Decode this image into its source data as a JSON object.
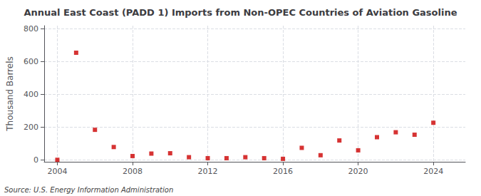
{
  "chart_data": {
    "type": "scatter",
    "title": "Annual East Coast (PADD 1) Imports from Non-OPEC Countries of Aviation Gasoline",
    "ylabel": "Thousand Barrels",
    "annotation": "Source: U.S. Energy Information Administration",
    "x": [
      2004,
      2005,
      2006,
      2007,
      2008,
      2009,
      2010,
      2011,
      2012,
      2013,
      2014,
      2015,
      2016,
      2017,
      2018,
      2019,
      2020,
      2021,
      2022,
      2023,
      2024
    ],
    "values": [
      2,
      655,
      185,
      80,
      25,
      40,
      42,
      18,
      12,
      12,
      18,
      12,
      8,
      75,
      30,
      120,
      60,
      140,
      170,
      155,
      228
    ],
    "color": "#cc0000",
    "marker": "square",
    "xlim": [
      2003.3,
      2025.7
    ],
    "xticks": [
      2004,
      2008,
      2012,
      2016,
      2020,
      2024
    ],
    "ylim": [
      -10,
      820
    ],
    "yticks": [
      0,
      200,
      400,
      600,
      800
    ],
    "grid": true
  }
}
